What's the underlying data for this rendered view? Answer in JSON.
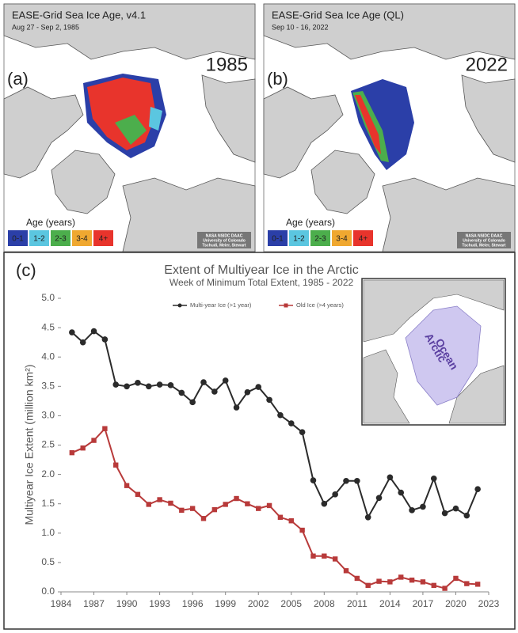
{
  "maps": [
    {
      "panel_label": "(a)",
      "title": "EASE-Grid Sea Ice Age, v4.1",
      "subtitle": "Aug 27 - Sep 2, 1985",
      "year": "1985",
      "legend_title": "Age (years)",
      "legend": [
        {
          "label": "0-1",
          "color": "#2b3fa8"
        },
        {
          "label": "1-2",
          "color": "#5bc6e0"
        },
        {
          "label": "2-3",
          "color": "#4cae4c"
        },
        {
          "label": "3-4",
          "color": "#f0a830"
        },
        {
          "label": "4+",
          "color": "#e8342c"
        }
      ],
      "credit": [
        "NASA NSIDC DAAC",
        "University of Colorado",
        "Tschudi, Meier, Stewart"
      ]
    },
    {
      "panel_label": "(b)",
      "title": "EASE-Grid Sea Ice Age (QL)",
      "subtitle": "Sep 10 - 16, 2022",
      "year": "2022",
      "legend_title": "Age (years)",
      "legend": [
        {
          "label": "0-1",
          "color": "#2b3fa8"
        },
        {
          "label": "1-2",
          "color": "#5bc6e0"
        },
        {
          "label": "2-3",
          "color": "#4cae4c"
        },
        {
          "label": "3-4",
          "color": "#f0a830"
        },
        {
          "label": "4+",
          "color": "#e8342c"
        }
      ],
      "credit": [
        "NASA NSIDC DAAC",
        "University of Colorado",
        "Tschudi, Meier, Stewart"
      ]
    }
  ],
  "chart_data": {
    "type": "line",
    "panel_label": "(c)",
    "title": "Extent of Multiyear Ice in the Arctic",
    "subtitle": "Week of Minimum Total Extent, 1985 - 2022",
    "ylabel": "Multiyear Ice Extent (million km²)",
    "inset_label": [
      "Arctic",
      "Ocean"
    ],
    "x": [
      1985,
      1986,
      1987,
      1988,
      1989,
      1990,
      1991,
      1992,
      1993,
      1994,
      1995,
      1996,
      1997,
      1998,
      1999,
      2000,
      2001,
      2002,
      2003,
      2004,
      2005,
      2006,
      2007,
      2008,
      2009,
      2010,
      2011,
      2012,
      2013,
      2014,
      2015,
      2016,
      2017,
      2018,
      2019,
      2020,
      2021,
      2022
    ],
    "series": [
      {
        "name": "Multi-year Ice (>1 year)",
        "color": "#2b2b2b",
        "marker": "circle",
        "values": [
          4.42,
          4.25,
          4.44,
          4.3,
          3.53,
          3.5,
          3.56,
          3.5,
          3.53,
          3.52,
          3.39,
          3.23,
          3.57,
          3.41,
          3.6,
          3.14,
          3.4,
          3.49,
          3.27,
          3.01,
          2.87,
          2.72,
          1.9,
          1.5,
          1.66,
          1.89,
          1.89,
          1.27,
          1.6,
          1.95,
          1.69,
          1.39,
          1.45,
          1.93,
          1.34,
          1.42,
          1.3,
          1.75
        ]
      },
      {
        "name": "Old Ice (>4 years)",
        "color": "#b83a3a",
        "marker": "square",
        "values": [
          2.37,
          2.45,
          2.58,
          2.78,
          2.16,
          1.81,
          1.66,
          1.49,
          1.57,
          1.51,
          1.39,
          1.42,
          1.25,
          1.4,
          1.49,
          1.59,
          1.5,
          1.42,
          1.47,
          1.27,
          1.21,
          1.05,
          0.61,
          0.61,
          0.56,
          0.36,
          0.23,
          0.11,
          0.18,
          0.17,
          0.25,
          0.2,
          0.17,
          0.11,
          0.06,
          0.23,
          0.14,
          0.13
        ]
      }
    ],
    "xlim": [
      1984,
      2023
    ],
    "xticks": [
      1984,
      1987,
      1990,
      1993,
      1996,
      1999,
      2002,
      2005,
      2008,
      2011,
      2014,
      2017,
      2020,
      2023
    ],
    "ylim": [
      0,
      5
    ],
    "yticks": [
      {
        "value": 0,
        "label": "0.0"
      },
      {
        "value": 0.5,
        "label": "0.5"
      },
      {
        "value": 1,
        "label": "1.0"
      },
      {
        "value": 1.5,
        "label": "1.5"
      },
      {
        "value": 2,
        "label": "2.0"
      },
      {
        "value": 2.5,
        "label": "2.5"
      },
      {
        "value": 3,
        "label": "3.0"
      },
      {
        "value": 3.5,
        "label": "3.5"
      },
      {
        "value": 4,
        "label": "4.0"
      },
      {
        "value": 4.5,
        "label": "4.5"
      },
      {
        "value": 5,
        "label": "5.0"
      }
    ],
    "grid": false,
    "legend_position": "top"
  }
}
